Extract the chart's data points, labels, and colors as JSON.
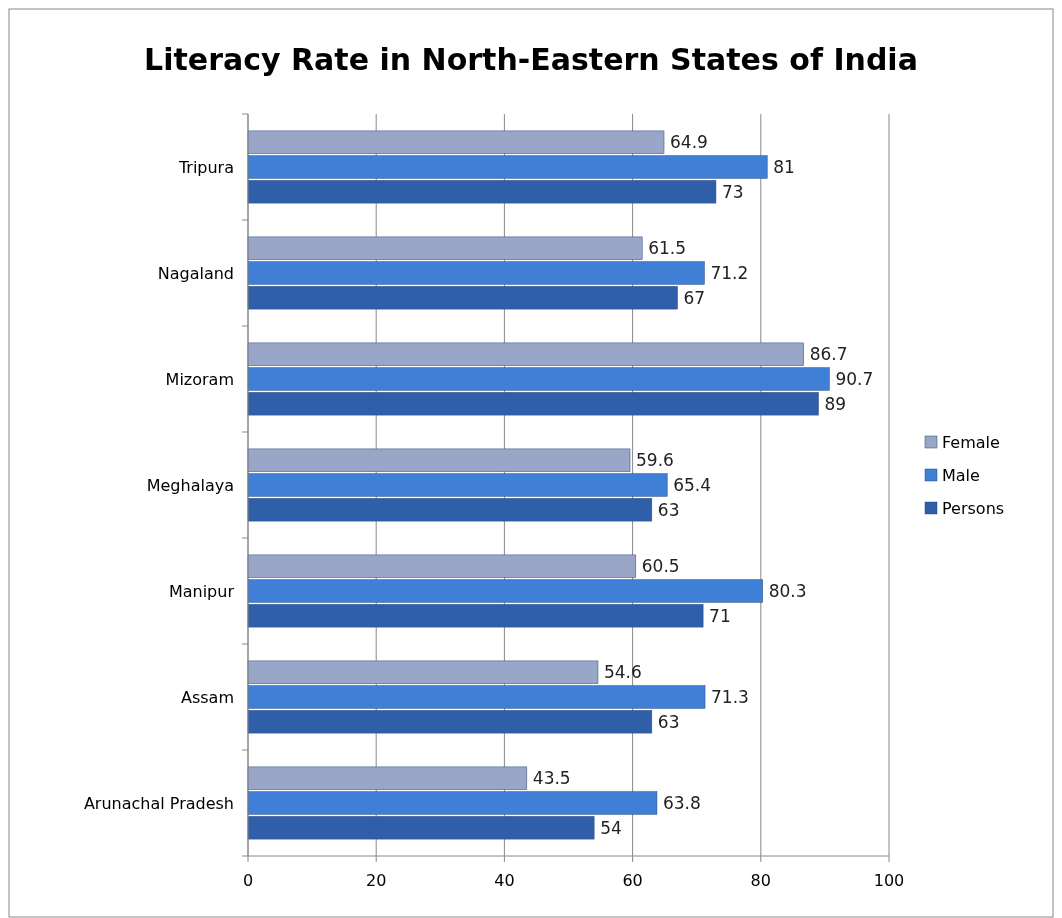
{
  "chart_data": {
    "type": "bar",
    "orientation": "horizontal",
    "title": "Literacy Rate in North-Eastern States of India",
    "categories": [
      "Tripura",
      "Nagaland",
      "Mizoram",
      "Meghalaya",
      "Manipur",
      "Assam",
      "Arunachal Pradesh"
    ],
    "series": [
      {
        "name": "Female",
        "color": "#9aa6c8",
        "values": [
          64.9,
          61.5,
          86.7,
          59.6,
          60.5,
          54.6,
          43.5
        ]
      },
      {
        "name": "Male",
        "color": "#3f7fd6",
        "values": [
          81,
          71.2,
          90.7,
          65.4,
          80.3,
          71.3,
          63.8
        ]
      },
      {
        "name": "Persons",
        "color": "#2f5fa8",
        "values": [
          73,
          67,
          89,
          63,
          71,
          63,
          54
        ]
      }
    ],
    "xlim": [
      0,
      100
    ],
    "xticks": [
      0,
      20,
      40,
      60,
      80,
      100
    ],
    "grid": "x",
    "legend": "right",
    "data_labels": true
  }
}
